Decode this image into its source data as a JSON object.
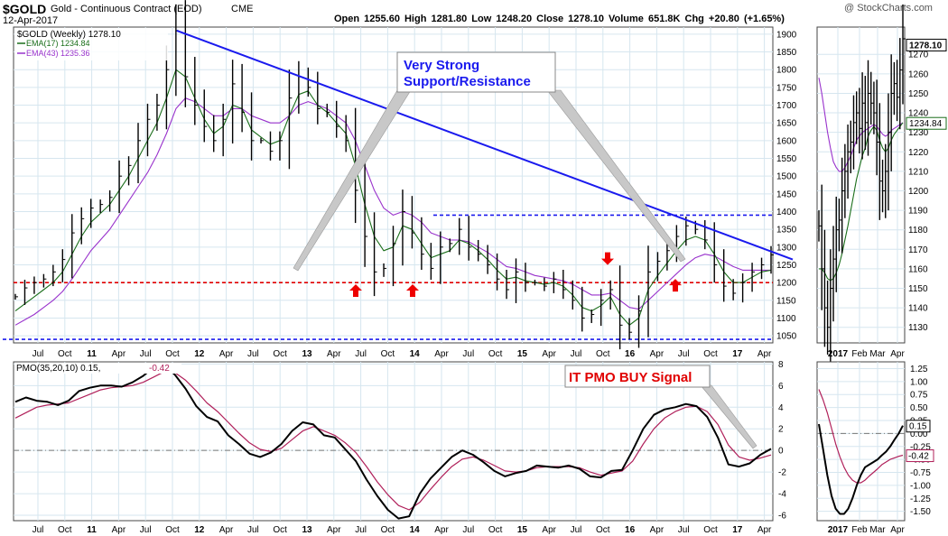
{
  "header": {
    "symbol": "$GOLD",
    "name": "Gold - Continuous Contract (EOD)",
    "exchange": "CME",
    "date": "12-Apr-2017",
    "quote": "Open 1255.60  High 1281.80  Low 1248.20  Close 1278.10  Volume 651.8K  Chg +20.80 (+1.65%)",
    "watermark": "@ StockCharts.com"
  },
  "colors": {
    "price": "#000000",
    "ema17": "#1a6e1a",
    "ema43": "#9932cc",
    "trendline": "#1a1aee",
    "support": "#e00000",
    "resistance": "#1a1aee",
    "pmo_signal": "#b0205a",
    "arrow": "#ee0000",
    "callout_text": "#1a1aee",
    "pmo_callout_text": "#e00000"
  },
  "chart_data": [
    {
      "type": "line",
      "panel": "main-weekly",
      "legend": [
        "$GOLD (Weekly) 1278.10",
        "EMA(17) 1234.84",
        "EMA(43) 1235.36"
      ],
      "x_ticks": [
        "Jul",
        "Oct",
        "11",
        "Apr",
        "Jul",
        "Oct",
        "12",
        "Apr",
        "Jul",
        "Oct",
        "13",
        "Apr",
        "Jul",
        "Oct",
        "14",
        "Apr",
        "Jul",
        "Oct",
        "15",
        "Apr",
        "Jul",
        "Oct",
        "16",
        "Apr",
        "Jul",
        "Oct",
        "17",
        "Apr"
      ],
      "y_ticks": [
        1050,
        1100,
        1150,
        1200,
        1250,
        1300,
        1350,
        1400,
        1450,
        1500,
        1550,
        1600,
        1650,
        1700,
        1750,
        1800,
        1850,
        1900
      ],
      "ylim": [
        1030,
        1920
      ],
      "series": [
        {
          "name": "$GOLD (Weekly)",
          "values": [
            1160,
            1185,
            1200,
            1210,
            1230,
            1265,
            1340,
            1380,
            1410,
            1420,
            1440,
            1500,
            1530,
            1600,
            1660,
            1700,
            1800,
            1910,
            1780,
            1700,
            1640,
            1600,
            1660,
            1760,
            1680,
            1600,
            1600,
            1570,
            1600,
            1720,
            1780,
            1750,
            1690,
            1680,
            1640,
            1600,
            1460,
            1330,
            1230,
            1240,
            1310,
            1400,
            1340,
            1280,
            1240,
            1300,
            1310,
            1350,
            1300,
            1280,
            1250,
            1210,
            1180,
            1230,
            1200,
            1200,
            1190,
            1210,
            1180,
            1150,
            1100,
            1110,
            1150,
            1180,
            1080,
            1060,
            1120,
            1230,
            1260,
            1290,
            1330,
            1360,
            1350,
            1320,
            1250,
            1190,
            1170,
            1200,
            1230,
            1250,
            1278
          ]
        },
        {
          "name": "EMA(17)",
          "values": [
            1120,
            1140,
            1160,
            1180,
            1200,
            1230,
            1280,
            1330,
            1370,
            1395,
            1420,
            1460,
            1500,
            1550,
            1600,
            1650,
            1720,
            1800,
            1780,
            1720,
            1660,
            1620,
            1640,
            1700,
            1690,
            1630,
            1610,
            1590,
            1600,
            1670,
            1730,
            1740,
            1700,
            1680,
            1650,
            1620,
            1530,
            1420,
            1330,
            1290,
            1300,
            1360,
            1350,
            1310,
            1270,
            1280,
            1290,
            1320,
            1310,
            1290,
            1265,
            1235,
            1210,
            1215,
            1205,
            1200,
            1195,
            1200,
            1190,
            1165,
            1130,
            1120,
            1135,
            1160,
            1110,
            1080,
            1100,
            1180,
            1220,
            1255,
            1290,
            1320,
            1330,
            1320,
            1280,
            1230,
            1200,
            1200,
            1215,
            1230,
            1235
          ]
        },
        {
          "name": "EMA(43)",
          "values": [
            1080,
            1095,
            1110,
            1130,
            1150,
            1175,
            1210,
            1250,
            1290,
            1320,
            1350,
            1390,
            1430,
            1470,
            1510,
            1560,
            1620,
            1690,
            1720,
            1710,
            1690,
            1670,
            1670,
            1690,
            1690,
            1670,
            1660,
            1650,
            1650,
            1670,
            1700,
            1710,
            1700,
            1690,
            1670,
            1650,
            1600,
            1530,
            1460,
            1410,
            1390,
            1400,
            1390,
            1370,
            1340,
            1330,
            1320,
            1320,
            1315,
            1300,
            1285,
            1265,
            1245,
            1240,
            1230,
            1220,
            1215,
            1210,
            1205,
            1195,
            1180,
            1165,
            1165,
            1170,
            1150,
            1130,
            1125,
            1150,
            1175,
            1200,
            1225,
            1250,
            1270,
            1280,
            1275,
            1260,
            1245,
            1235,
            1235,
            1235,
            1235
          ]
        }
      ],
      "annotations": {
        "callout": "Very Strong\nSupport/Resistance",
        "resistance_level": 1390,
        "support_level": 1200,
        "bottom_level": 1040,
        "trendline": [
          [
            0.215,
            1910
          ],
          [
            1.0,
            1265
          ]
        ]
      }
    },
    {
      "type": "line",
      "panel": "pmo-weekly",
      "legend": [
        "PMO(35,20,10) 0.15,",
        "-0.42"
      ],
      "x_ticks": [
        "Jul",
        "Oct",
        "11",
        "Apr",
        "Jul",
        "Oct",
        "12",
        "Apr",
        "Jul",
        "Oct",
        "13",
        "Apr",
        "Jul",
        "Oct",
        "14",
        "Apr",
        "Jul",
        "Oct",
        "15",
        "Apr",
        "Jul",
        "Oct",
        "16",
        "Apr",
        "Jul",
        "Oct",
        "17",
        "Apr"
      ],
      "y_ticks": [
        -6,
        -4,
        -2,
        0,
        2,
        4,
        6,
        8
      ],
      "ylim": [
        -6.5,
        8.2
      ],
      "series": [
        {
          "name": "PMO",
          "values": [
            4.5,
            4.9,
            4.6,
            4.5,
            4.2,
            4.6,
            5.5,
            5.8,
            6.0,
            6.0,
            5.9,
            6.3,
            6.9,
            7.7,
            8.0,
            7.0,
            5.7,
            4.1,
            3.1,
            2.7,
            1.4,
            0.6,
            -0.3,
            -0.6,
            -0.2,
            0.6,
            1.8,
            2.6,
            2.4,
            1.4,
            1.2,
            0.1,
            -1.0,
            -2.7,
            -4.2,
            -5.5,
            -6.3,
            -6.1,
            -4.0,
            -2.6,
            -1.6,
            -0.6,
            0.0,
            -0.4,
            -1.1,
            -1.9,
            -2.4,
            -2.1,
            -1.9,
            -1.4,
            -1.5,
            -1.6,
            -1.4,
            -1.7,
            -2.4,
            -2.5,
            -1.9,
            -1.8,
            0.0,
            2.0,
            3.3,
            3.8,
            4.0,
            4.3,
            4.1,
            3.1,
            1.2,
            -1.3,
            -1.5,
            -1.2,
            -0.4,
            0.15
          ]
        },
        {
          "name": "Signal",
          "values": [
            3.0,
            3.5,
            4.0,
            4.2,
            4.3,
            4.4,
            4.8,
            5.2,
            5.6,
            5.8,
            5.9,
            6.0,
            6.3,
            6.8,
            7.3,
            7.2,
            6.5,
            5.5,
            4.4,
            3.6,
            2.6,
            1.6,
            0.7,
            0.1,
            -0.1,
            0.2,
            1.0,
            1.8,
            2.2,
            1.8,
            1.4,
            0.7,
            -0.2,
            -1.5,
            -2.9,
            -4.1,
            -5.1,
            -5.5,
            -4.8,
            -3.6,
            -2.5,
            -1.5,
            -0.8,
            -0.6,
            -0.9,
            -1.4,
            -1.9,
            -2.0,
            -1.9,
            -1.6,
            -1.5,
            -1.5,
            -1.5,
            -1.6,
            -2.0,
            -2.3,
            -2.1,
            -1.9,
            -1.0,
            0.6,
            2.0,
            3.0,
            3.6,
            4.0,
            4.1,
            3.6,
            2.4,
            0.5,
            -0.6,
            -0.9,
            -0.7,
            -0.42
          ]
        }
      ],
      "annotations": {
        "callout": "IT PMO BUY Signal"
      }
    },
    {
      "type": "line",
      "panel": "main-daily",
      "x_ticks": [
        "2017",
        "Feb",
        "Mar",
        "Apr"
      ],
      "y_ticks": [
        1130,
        1140,
        1150,
        1160,
        1170,
        1180,
        1190,
        1200,
        1210,
        1220,
        1230,
        1240,
        1250,
        1260,
        1270
      ],
      "ylim": [
        1122,
        1284
      ],
      "badges": [
        "1278.10",
        "1234.84"
      ],
      "series": [
        {
          "name": "Daily",
          "values": [
            1182,
            1160,
            1140,
            1130,
            1150,
            1165,
            1180,
            1185,
            1200,
            1210,
            1220,
            1225,
            1235,
            1240,
            1232,
            1245,
            1235,
            1250,
            1245,
            1240,
            1225,
            1205,
            1200,
            1210,
            1230,
            1250,
            1255,
            1248,
            1262,
            1278
          ]
        },
        {
          "name": "EMA(17)",
          "values": [
            1160,
            1160,
            1158,
            1155,
            1154,
            1155,
            1158,
            1162,
            1168,
            1175,
            1182,
            1190,
            1198,
            1206,
            1212,
            1218,
            1222,
            1228,
            1231,
            1233,
            1231,
            1226,
            1222,
            1220,
            1222,
            1226,
            1229,
            1231,
            1233,
            1235
          ]
        },
        {
          "name": "EMA(43)",
          "values": [
            1258,
            1250,
            1240,
            1230,
            1222,
            1215,
            1212,
            1210,
            1210,
            1212,
            1215,
            1218,
            1222,
            1226,
            1228,
            1230,
            1231,
            1232,
            1233,
            1234,
            1233,
            1231,
            1229,
            1228,
            1229,
            1231,
            1232,
            1233,
            1234,
            1235
          ]
        }
      ]
    },
    {
      "type": "line",
      "panel": "pmo-daily",
      "x_ticks": [
        "2017",
        "Feb",
        "Mar",
        "Apr"
      ],
      "y_ticks": [
        -1.5,
        -1.25,
        -1.0,
        -0.75,
        -0.5,
        -0.25,
        0.0,
        0.25,
        0.5,
        0.75,
        1.0,
        1.25
      ],
      "ylim": [
        -1.68,
        1.38
      ],
      "badges": [
        "0.15",
        "-0.42"
      ],
      "series": [
        {
          "name": "PMO",
          "values": [
            0.18,
            -0.3,
            -0.8,
            -1.2,
            -1.45,
            -1.55,
            -1.55,
            -1.45,
            -1.25,
            -1.0,
            -0.8,
            -0.65,
            -0.6,
            -0.55,
            -0.5,
            -0.42,
            -0.35,
            -0.25,
            -0.12,
            0.0,
            0.15
          ]
        },
        {
          "name": "Signal",
          "values": [
            0.85,
            0.65,
            0.4,
            0.1,
            -0.2,
            -0.45,
            -0.65,
            -0.8,
            -0.9,
            -0.95,
            -0.95,
            -0.9,
            -0.82,
            -0.75,
            -0.68,
            -0.6,
            -0.55,
            -0.5,
            -0.47,
            -0.44,
            -0.42
          ]
        }
      ]
    }
  ]
}
